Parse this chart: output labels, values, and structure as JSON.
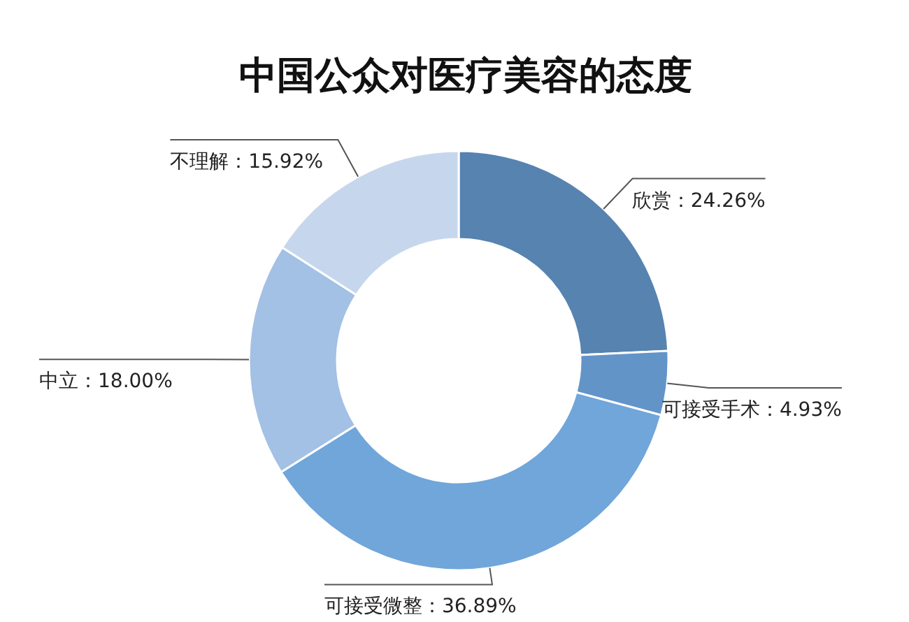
{
  "chart_data": {
    "type": "donut",
    "title": "中国公众对医疗美容的态度",
    "categories": [
      "欣赏",
      "可接受手术",
      "可接受微整",
      "中立",
      "不理解"
    ],
    "values": [
      24.26,
      4.93,
      36.89,
      18.0,
      15.92
    ],
    "value_labels": [
      "24.26%",
      "4.93%",
      "36.89%",
      "18.00%",
      "15.92%"
    ],
    "colors": [
      "#5683b0",
      "#6394c8",
      "#70a6da",
      "#a3c0e5",
      "#c6d7ed"
    ],
    "legend": false
  }
}
